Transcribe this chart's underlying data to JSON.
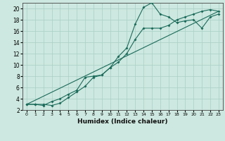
{
  "xlabel": "Humidex (Indice chaleur)",
  "ylabel": "",
  "xlim": [
    -0.5,
    23.5
  ],
  "ylim": [
    2,
    21
  ],
  "xticks": [
    0,
    1,
    2,
    3,
    4,
    5,
    6,
    7,
    8,
    9,
    10,
    11,
    12,
    13,
    14,
    15,
    16,
    17,
    18,
    19,
    20,
    21,
    22,
    23
  ],
  "yticks": [
    2,
    4,
    6,
    8,
    10,
    12,
    14,
    16,
    18,
    20
  ],
  "bg_color": "#cde8e0",
  "grid_color": "#a8cfc5",
  "line_color": "#1a6b5a",
  "line1_x": [
    0,
    1,
    2,
    3,
    4,
    5,
    6,
    7,
    8,
    9,
    10,
    11,
    12,
    13,
    14,
    15,
    16,
    17,
    18,
    19,
    20,
    21,
    22,
    23
  ],
  "line1_y": [
    3.0,
    3.0,
    3.0,
    2.8,
    3.2,
    4.2,
    5.2,
    6.2,
    7.8,
    8.2,
    9.5,
    11.5,
    13.0,
    17.2,
    20.2,
    21.0,
    19.0,
    18.5,
    17.5,
    17.8,
    18.0,
    16.5,
    18.5,
    19.0
  ],
  "line2_x": [
    0,
    1,
    2,
    3,
    4,
    5,
    6,
    7,
    8,
    9,
    10,
    11,
    12,
    13,
    14,
    15,
    16,
    17,
    18,
    19,
    20,
    21,
    22,
    23
  ],
  "line2_y": [
    3.0,
    3.0,
    2.8,
    3.5,
    4.0,
    4.8,
    5.5,
    7.8,
    8.0,
    8.2,
    9.5,
    10.5,
    12.0,
    14.5,
    16.5,
    16.5,
    16.5,
    17.0,
    18.0,
    18.5,
    19.0,
    19.5,
    19.8,
    19.5
  ],
  "line3_x": [
    0,
    23
  ],
  "line3_y": [
    3.0,
    19.5
  ]
}
